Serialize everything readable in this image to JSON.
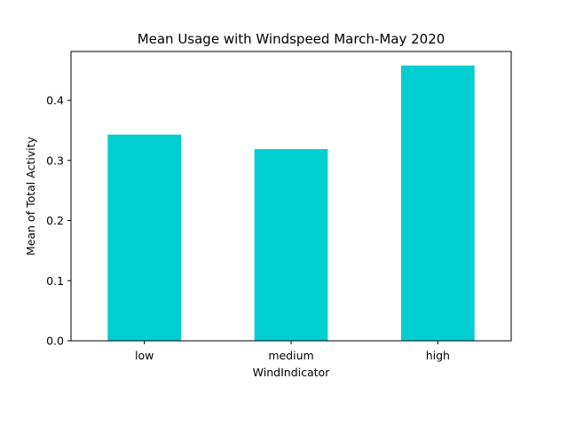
{
  "chart_data": {
    "type": "bar",
    "title": "Mean Usage with Windspeed March-May 2020",
    "xlabel": "WindIndicator",
    "ylabel": "Mean of Total Activity",
    "categories": [
      "low",
      "medium",
      "high"
    ],
    "values": [
      0.343,
      0.319,
      0.458
    ],
    "ylim": [
      0,
      0.4813
    ],
    "yticks": [
      0.0,
      0.1,
      0.2,
      0.3,
      0.4
    ],
    "ytick_labels": [
      "0.0",
      "0.1",
      "0.2",
      "0.3",
      "0.4"
    ],
    "grid": false,
    "legend": "none",
    "bar_color": "#00CED1"
  }
}
